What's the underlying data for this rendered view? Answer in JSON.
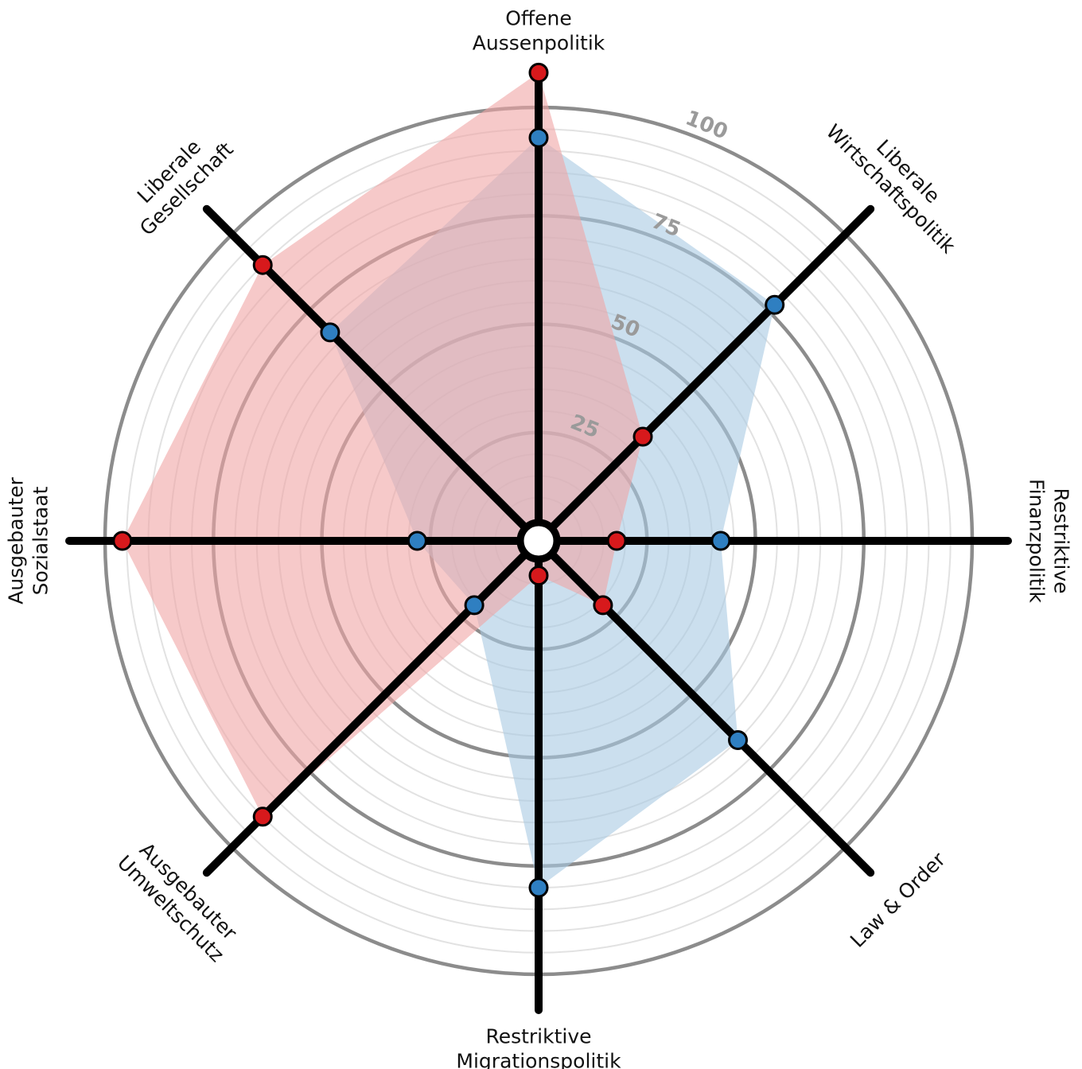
{
  "chart_data": {
    "type": "radar",
    "title": "",
    "rmax": 100,
    "ticks": [
      {
        "value": 25,
        "label": "25"
      },
      {
        "value": 50,
        "label": "50"
      },
      {
        "value": 75,
        "label": "75"
      },
      {
        "value": 100,
        "label": "100"
      }
    ],
    "minor_step": 5,
    "axes": [
      {
        "key": "aussen",
        "label_lines": [
          "Offene",
          "Aussenpolitik"
        ]
      },
      {
        "key": "wirtschaft",
        "label_lines": [
          "Liberale",
          "Wirtschaftspolitik"
        ]
      },
      {
        "key": "finanz",
        "label_lines": [
          "Restriktive",
          "Finanzpolitik"
        ]
      },
      {
        "key": "law",
        "label_lines": [
          "Law & Order"
        ]
      },
      {
        "key": "migration",
        "label_lines": [
          "Restriktive",
          "Migrationspolitik"
        ]
      },
      {
        "key": "umwelt",
        "label_lines": [
          "Ausgebauter",
          "Umweltschutz"
        ]
      },
      {
        "key": "sozial",
        "label_lines": [
          "Ausgebauter",
          "Sozialstaat"
        ]
      },
      {
        "key": "gesellschaft",
        "label_lines": [
          "Liberale",
          "Gesellschaft"
        ]
      }
    ],
    "series": [
      {
        "values": [
          93,
          77,
          42,
          65,
          80,
          21,
          28,
          68
        ],
        "color": "#2f7fc1",
        "fill": "#a9c9e3"
      },
      {
        "values": [
          108,
          34,
          18,
          21,
          8,
          90,
          96,
          90
        ],
        "color": "#d7191c",
        "fill": "#f0a5a5"
      }
    ]
  }
}
